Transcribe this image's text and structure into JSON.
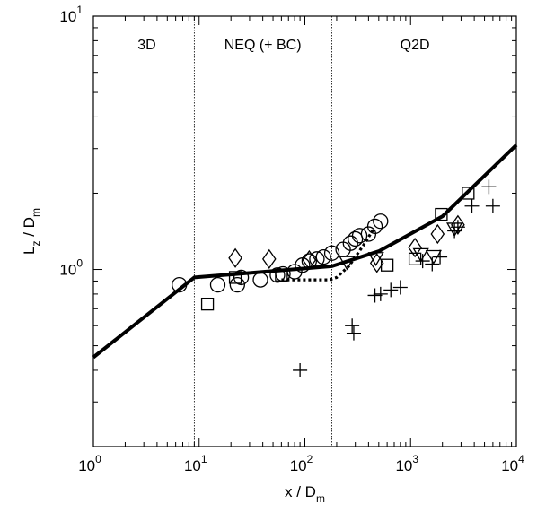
{
  "chart_data": {
    "type": "scatter",
    "xscale": "log",
    "yscale": "log",
    "xlim": [
      1,
      10000
    ],
    "ylim": [
      0.2,
      10
    ],
    "x_ticks": [
      {
        "value": 1,
        "base": "10",
        "exp": "0"
      },
      {
        "value": 10,
        "base": "10",
        "exp": "1"
      },
      {
        "value": 100,
        "base": "10",
        "exp": "2"
      },
      {
        "value": 1000,
        "base": "10",
        "exp": "3"
      },
      {
        "value": 10000,
        "base": "10",
        "exp": "4"
      }
    ],
    "y_ticks": [
      {
        "value": 1,
        "base": "10",
        "exp": "0"
      },
      {
        "value": 10,
        "base": "10",
        "exp": "1"
      }
    ],
    "xlabel": {
      "main": "x / D",
      "sub": "m"
    },
    "ylabel": {
      "main": "L",
      "sub1": "z",
      "mid": " / D",
      "sub2": "m"
    },
    "regions": [
      {
        "label": "3D",
        "x": 3.2
      },
      {
        "label": "NEQ (+ BC)",
        "x": 40
      },
      {
        "label": "Q2D",
        "x": 1100
      }
    ],
    "dividers": [
      9,
      180
    ],
    "lines": [
      {
        "style": "solid",
        "points": [
          [
            1,
            0.45
          ],
          [
            9,
            0.93
          ],
          [
            180,
            1.03
          ],
          [
            500,
            1.18
          ],
          [
            2000,
            1.62
          ],
          [
            10000,
            3.1
          ]
        ]
      },
      {
        "style": "dotted",
        "points": [
          [
            60,
            0.91
          ],
          [
            170,
            0.91
          ],
          [
            200,
            0.93
          ],
          [
            260,
            1.03
          ],
          [
            300,
            1.12
          ],
          [
            360,
            1.25
          ],
          [
            450,
            1.45
          ]
        ]
      }
    ],
    "series": [
      {
        "marker": "circle",
        "points": [
          [
            6.5,
            0.87
          ],
          [
            15,
            0.87
          ],
          [
            23,
            0.87
          ],
          [
            25,
            0.93
          ],
          [
            38,
            0.91
          ],
          [
            55,
            0.95
          ],
          [
            62,
            0.96
          ],
          [
            80,
            0.98
          ],
          [
            95,
            1.04
          ],
          [
            110,
            1.08
          ],
          [
            130,
            1.1
          ],
          [
            150,
            1.12
          ],
          [
            180,
            1.16
          ],
          [
            230,
            1.2
          ],
          [
            270,
            1.27
          ],
          [
            300,
            1.32
          ],
          [
            330,
            1.36
          ],
          [
            400,
            1.38
          ],
          [
            460,
            1.48
          ],
          [
            520,
            1.55
          ]
        ]
      },
      {
        "marker": "square",
        "points": [
          [
            12,
            0.73
          ],
          [
            22,
            0.93
          ],
          [
            60,
            0.95
          ],
          [
            600,
            1.04
          ],
          [
            1100,
            1.1
          ],
          [
            1950,
            1.65
          ],
          [
            3500,
            2.0
          ]
        ]
      },
      {
        "marker": "diamond",
        "points": [
          [
            22,
            1.11
          ],
          [
            46,
            1.1
          ],
          [
            110,
            1.09
          ],
          [
            480,
            1.06
          ],
          [
            1100,
            1.22
          ],
          [
            1800,
            1.38
          ],
          [
            2800,
            1.5
          ]
        ]
      },
      {
        "marker": "triangle-down",
        "points": [
          [
            250,
            1.07
          ],
          [
            470,
            1.11
          ],
          [
            1250,
            1.15
          ],
          [
            1650,
            1.13
          ],
          [
            2600,
            1.45
          ]
        ]
      },
      {
        "marker": "plus",
        "points": [
          [
            90,
            0.4
          ],
          [
            280,
            0.6
          ],
          [
            290,
            0.56
          ],
          [
            460,
            0.79
          ],
          [
            520,
            0.8
          ],
          [
            650,
            0.83
          ],
          [
            800,
            0.85
          ],
          [
            1300,
            1.08
          ],
          [
            1600,
            1.05
          ],
          [
            1900,
            1.12
          ],
          [
            2600,
            1.42
          ],
          [
            2800,
            1.47
          ],
          [
            3800,
            1.78
          ],
          [
            5500,
            2.12
          ],
          [
            6000,
            1.78
          ]
        ]
      }
    ]
  }
}
